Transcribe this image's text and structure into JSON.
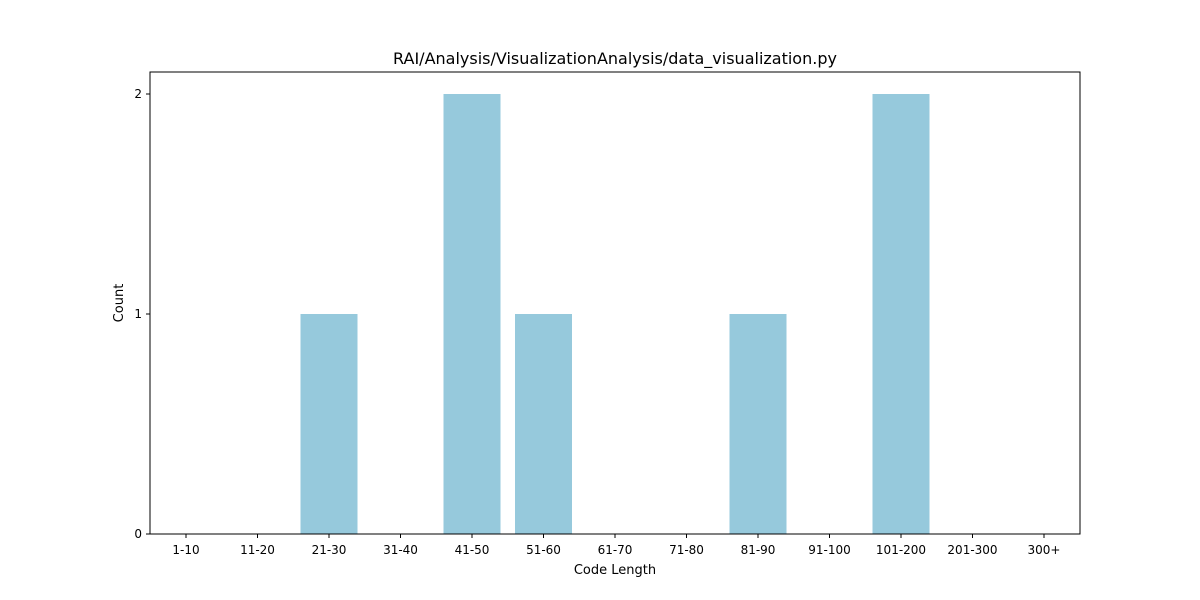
{
  "chart_data": {
    "type": "bar",
    "title": "RAI/Analysis/VisualizationAnalysis/data_visualization.py",
    "xlabel": "Code Length",
    "ylabel": "Count",
    "categories": [
      "1-10",
      "11-20",
      "21-30",
      "31-40",
      "41-50",
      "51-60",
      "61-70",
      "71-80",
      "81-90",
      "91-100",
      "101-200",
      "201-300",
      "300+"
    ],
    "values": [
      0,
      0,
      1,
      0,
      2,
      1,
      0,
      0,
      1,
      0,
      2,
      0,
      0
    ],
    "ylim": [
      0,
      2.1
    ],
    "yticks": [
      0,
      1,
      2
    ],
    "bar_color": "#96c9dc",
    "grid": false,
    "legend": "none"
  }
}
